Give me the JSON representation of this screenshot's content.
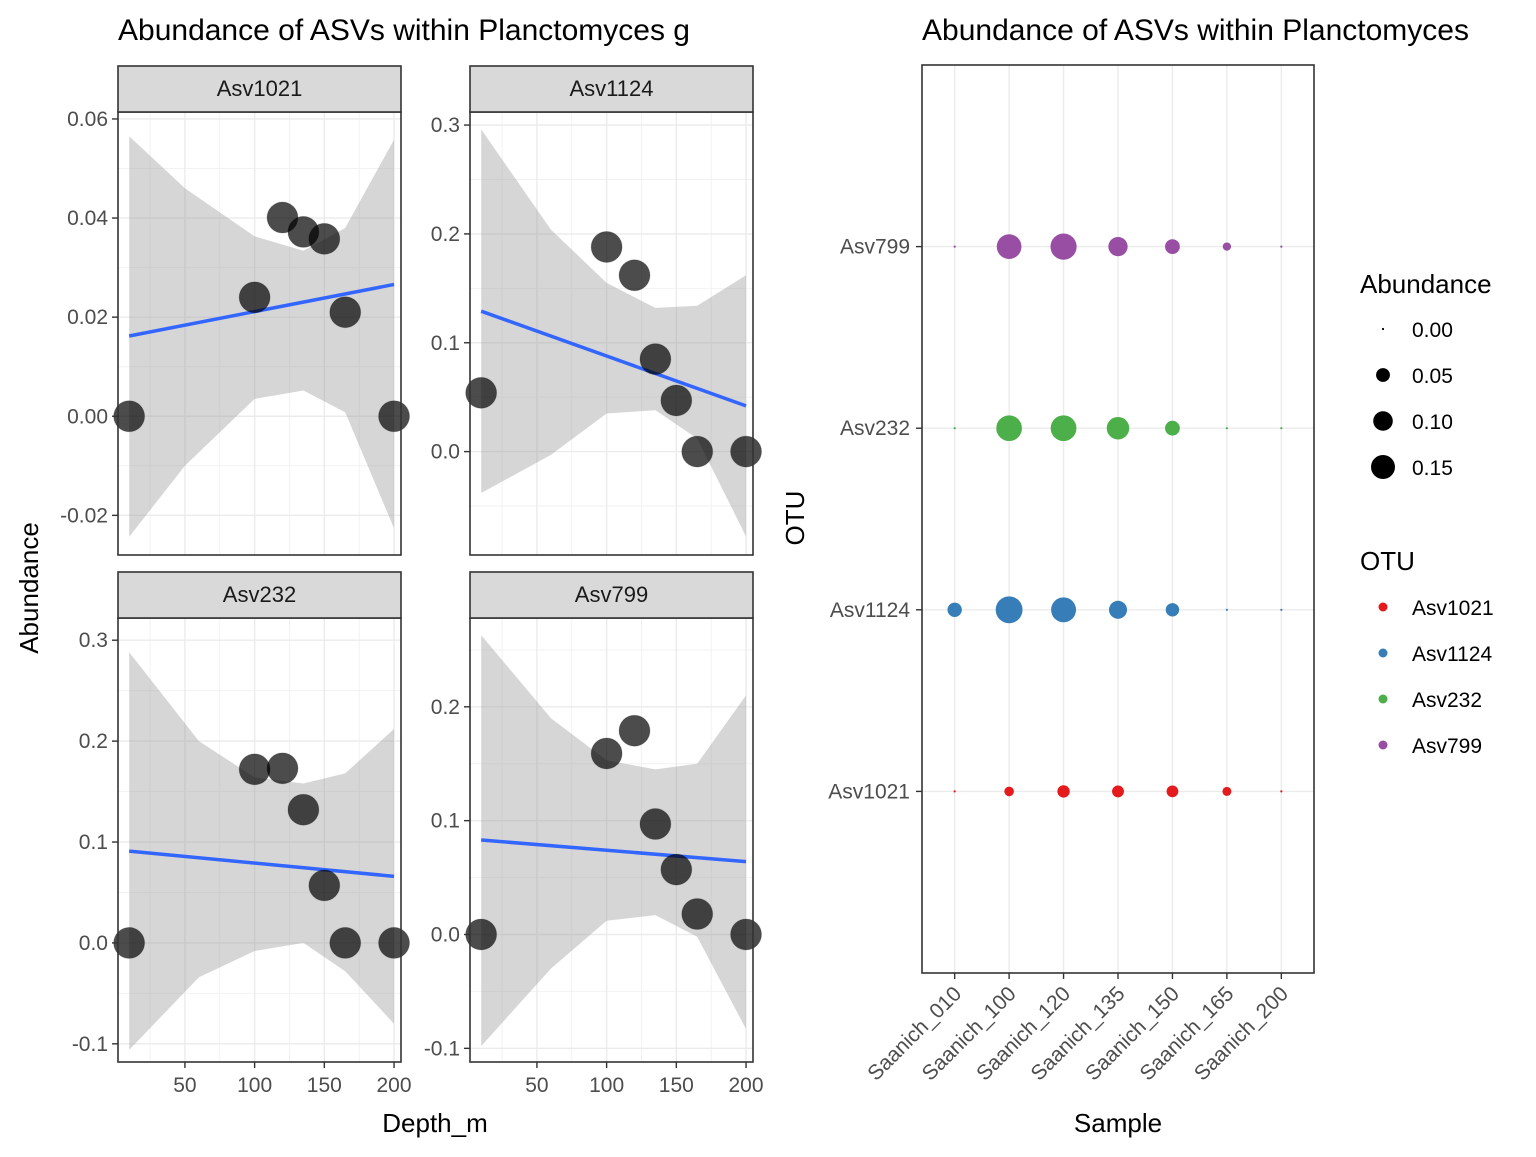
{
  "left_title": "Abundance of ASVs within Planctomyces g",
  "right_title": "Abundance of ASVs within Planctomyces",
  "chart_data": [
    {
      "type": "scatter",
      "title": "Abundance of ASVs within Planctomyces g",
      "xlabel": "Depth_m",
      "ylabel": "Abundance",
      "xlim": [
        2,
        205
      ],
      "x_ticks": [
        50,
        100,
        150,
        200
      ],
      "smooth": "linear fit with confidence band",
      "facets": [
        {
          "name": "Asv1021",
          "ylim": [
            -0.028,
            0.0614
          ],
          "y_ticks": [
            -0.02,
            0.0,
            0.02,
            0.04,
            0.06
          ],
          "y_tick_labels": [
            "-0.02",
            "0.00",
            "0.02",
            "0.04",
            "0.06"
          ],
          "points": [
            [
              10,
              0.0
            ],
            [
              100,
              0.024
            ],
            [
              120,
              0.0401
            ],
            [
              135,
              0.0372
            ],
            [
              150,
              0.0358
            ],
            [
              165,
              0.021
            ],
            [
              200,
              0.0
            ]
          ],
          "fit": [
            [
              10,
              0.0162
            ],
            [
              200,
              0.0266
            ]
          ],
          "band_upper": [
            [
              10,
              0.0565
            ],
            [
              50,
              0.046
            ],
            [
              100,
              0.0363
            ],
            [
              135,
              0.0334
            ],
            [
              165,
              0.038
            ],
            [
              200,
              0.0558
            ]
          ],
          "band_lower": [
            [
              10,
              -0.0243
            ],
            [
              50,
              -0.01
            ],
            [
              100,
              0.0035
            ],
            [
              135,
              0.0052
            ],
            [
              165,
              0.0008
            ],
            [
              200,
              -0.0226
            ]
          ]
        },
        {
          "name": "Asv1124",
          "ylim": [
            -0.095,
            0.312
          ],
          "y_ticks": [
            0.0,
            0.1,
            0.2,
            0.3
          ],
          "y_tick_labels": [
            "0.0",
            "0.1",
            "0.2",
            "0.3"
          ],
          "points": [
            [
              10,
              0.054
            ],
            [
              100,
              0.188
            ],
            [
              120,
              0.162
            ],
            [
              135,
              0.085
            ],
            [
              150,
              0.047
            ],
            [
              165,
              0.0
            ],
            [
              200,
              0.0
            ]
          ],
          "fit": [
            [
              10,
              0.129
            ],
            [
              200,
              0.042
            ]
          ],
          "band_upper": [
            [
              10,
              0.296
            ],
            [
              60,
              0.204
            ],
            [
              100,
              0.155
            ],
            [
              135,
              0.132
            ],
            [
              165,
              0.134
            ],
            [
              200,
              0.162
            ]
          ],
          "band_lower": [
            [
              10,
              -0.038
            ],
            [
              60,
              -0.003
            ],
            [
              100,
              0.035
            ],
            [
              135,
              0.038
            ],
            [
              165,
              0.012
            ],
            [
              200,
              -0.078
            ]
          ]
        },
        {
          "name": "Asv232",
          "ylim": [
            -0.118,
            0.322
          ],
          "y_ticks": [
            -0.1,
            0.0,
            0.1,
            0.2,
            0.3
          ],
          "y_tick_labels": [
            "-0.1",
            "0.0",
            "0.1",
            "0.2",
            "0.3"
          ],
          "points": [
            [
              10,
              0.0
            ],
            [
              100,
              0.172
            ],
            [
              120,
              0.173
            ],
            [
              135,
              0.132
            ],
            [
              150,
              0.057
            ],
            [
              165,
              0.0
            ],
            [
              200,
              0.0
            ]
          ],
          "fit": [
            [
              10,
              0.091
            ],
            [
              200,
              0.066
            ]
          ],
          "band_upper": [
            [
              10,
              0.288
            ],
            [
              60,
              0.2
            ],
            [
              100,
              0.164
            ],
            [
              135,
              0.158
            ],
            [
              165,
              0.168
            ],
            [
              200,
              0.212
            ]
          ],
          "band_lower": [
            [
              10,
              -0.106
            ],
            [
              60,
              -0.034
            ],
            [
              100,
              -0.008
            ],
            [
              135,
              -0.0
            ],
            [
              165,
              -0.028
            ],
            [
              200,
              -0.08
            ]
          ]
        },
        {
          "name": "Asv799",
          "ylim": [
            -0.112,
            0.278
          ],
          "y_ticks": [
            -0.1,
            0.0,
            0.1,
            0.2
          ],
          "y_tick_labels": [
            "-0.1",
            "0.0",
            "0.1",
            "0.2"
          ],
          "points": [
            [
              10,
              0.0
            ],
            [
              100,
              0.159
            ],
            [
              120,
              0.179
            ],
            [
              135,
              0.097
            ],
            [
              150,
              0.057
            ],
            [
              165,
              0.018
            ],
            [
              200,
              0.0
            ]
          ],
          "fit": [
            [
              10,
              0.083
            ],
            [
              200,
              0.064
            ]
          ],
          "band_upper": [
            [
              10,
              0.263
            ],
            [
              60,
              0.19
            ],
            [
              100,
              0.153
            ],
            [
              135,
              0.145
            ],
            [
              165,
              0.15
            ],
            [
              200,
              0.21
            ]
          ],
          "band_lower": [
            [
              10,
              -0.098
            ],
            [
              60,
              -0.03
            ],
            [
              100,
              0.012
            ],
            [
              135,
              0.017
            ],
            [
              165,
              -0.002
            ],
            [
              200,
              -0.083
            ]
          ]
        }
      ]
    },
    {
      "type": "scatter",
      "title": "Abundance of ASVs within Planctomyces",
      "xlabel": "Sample",
      "ylabel": "OTU",
      "categories": [
        "Saanich_010",
        "Saanich_100",
        "Saanich_120",
        "Saanich_135",
        "Saanich_150",
        "Saanich_165",
        "Saanich_200"
      ],
      "otus": [
        "Asv1021",
        "Asv1124",
        "Asv232",
        "Asv799"
      ],
      "legend_position": "right",
      "size_legend": {
        "title": "Abundance",
        "values": [
          0.0,
          0.05,
          0.1,
          0.15
        ],
        "labels": [
          "0.00",
          "0.05",
          "0.10",
          "0.15"
        ]
      },
      "color_legend": {
        "title": "OTU",
        "items": [
          {
            "name": "Asv1021",
            "color": "#e41a1c"
          },
          {
            "name": "Asv1124",
            "color": "#377eb8"
          },
          {
            "name": "Asv232",
            "color": "#4daf4a"
          },
          {
            "name": "Asv799",
            "color": "#984ea3"
          }
        ]
      },
      "series": [
        {
          "name": "Asv1021",
          "color": "#e41a1c",
          "values": [
            0.0,
            0.024,
            0.04,
            0.037,
            0.036,
            0.021,
            0.0
          ]
        },
        {
          "name": "Asv1124",
          "color": "#377eb8",
          "values": [
            0.054,
            0.188,
            0.162,
            0.085,
            0.047,
            0.0,
            0.0
          ]
        },
        {
          "name": "Asv232",
          "color": "#4daf4a",
          "values": [
            0.0,
            0.172,
            0.173,
            0.132,
            0.057,
            0.0,
            0.0
          ]
        },
        {
          "name": "Asv799",
          "color": "#984ea3",
          "values": [
            0.0,
            0.159,
            0.179,
            0.097,
            0.057,
            0.018,
            0.0
          ]
        }
      ]
    }
  ]
}
